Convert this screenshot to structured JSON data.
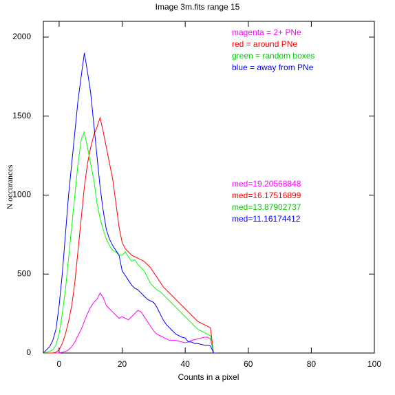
{
  "chart_data": {
    "type": "line",
    "title": "Image 3m.fits   range 15",
    "x_label": "Counts in a pixel",
    "y_label": "N occurances",
    "x": [
      -5,
      -4,
      -3,
      -2,
      -1,
      0,
      1,
      2,
      3,
      4,
      5,
      6,
      7,
      8,
      9,
      10,
      11,
      12,
      13,
      14,
      15,
      16,
      17,
      18,
      19,
      20,
      21,
      22,
      23,
      24,
      25,
      26,
      27,
      28,
      29,
      30,
      31,
      32,
      33,
      34,
      35,
      36,
      37,
      38,
      39,
      40,
      41,
      42,
      43,
      44,
      45,
      46,
      47,
      48,
      49,
      50
    ],
    "series": [
      {
        "color": "#ff00ff",
        "values": [
          0,
          0,
          0,
          0,
          0,
          0,
          5,
          10,
          20,
          40,
          70,
          110,
          150,
          200,
          250,
          290,
          320,
          340,
          380,
          350,
          300,
          280,
          260,
          240,
          220,
          230,
          220,
          210,
          230,
          250,
          270,
          260,
          230,
          200,
          170,
          140,
          120,
          110,
          100,
          90,
          80,
          80,
          80,
          75,
          70,
          65,
          70,
          80,
          85,
          90,
          95,
          100,
          100,
          90,
          0,
          0
        ]
      },
      {
        "color": "#ff0000",
        "values": [
          0,
          0,
          0,
          0,
          5,
          20,
          60,
          120,
          200,
          300,
          450,
          650,
          850,
          1050,
          1200,
          1300,
          1380,
          1430,
          1490,
          1400,
          1300,
          1200,
          1100,
          950,
          800,
          700,
          660,
          640,
          620,
          610,
          600,
          590,
          580,
          560,
          540,
          510,
          480,
          450,
          420,
          400,
          380,
          360,
          340,
          320,
          300,
          280,
          260,
          240,
          220,
          200,
          190,
          180,
          170,
          160,
          0,
          0
        ]
      },
      {
        "color": "#00ff00",
        "values": [
          0,
          5,
          10,
          20,
          50,
          120,
          250,
          400,
          600,
          800,
          1000,
          1200,
          1350,
          1400,
          1300,
          1200,
          1100,
          950,
          850,
          780,
          720,
          680,
          650,
          640,
          620,
          620,
          640,
          610,
          580,
          590,
          560,
          540,
          520,
          480,
          440,
          420,
          400,
          390,
          370,
          350,
          330,
          310,
          290,
          270,
          250,
          230,
          210,
          190,
          170,
          150,
          140,
          130,
          120,
          110,
          0,
          0
        ]
      },
      {
        "color": "#0000ff",
        "values": [
          0,
          20,
          40,
          80,
          150,
          300,
          500,
          750,
          1000,
          1200,
          1400,
          1600,
          1750,
          1900,
          1780,
          1650,
          1450,
          1250,
          1050,
          900,
          780,
          720,
          680,
          650,
          620,
          520,
          490,
          460,
          430,
          410,
          400,
          380,
          360,
          340,
          330,
          320,
          290,
          250,
          210,
          180,
          160,
          140,
          120,
          110,
          100,
          95,
          70,
          70,
          60,
          60,
          55,
          50,
          50,
          45,
          0,
          0
        ]
      }
    ],
    "annotations": [
      {
        "text": "magenta = 2+ PNe",
        "color": "#ff00ff"
      },
      {
        "text": "red = around PNe",
        "color": "#ff0000"
      },
      {
        "text": "green = random boxes",
        "color": "#00cc00"
      },
      {
        "text": "blue = away from PNe",
        "color": "#0000ff"
      },
      {
        "text": "med=19.20568848",
        "color": "#ff00ff"
      },
      {
        "text": "med=16.17516899",
        "color": "#ff0000"
      },
      {
        "text": "med=13.87902737",
        "color": "#00cc00"
      },
      {
        "text": "med=11.16174412",
        "color": "#0000ff"
      }
    ],
    "xlim": [
      -5,
      100
    ],
    "ylim": [
      0,
      2100
    ],
    "xticks": [
      0,
      20,
      40,
      60,
      80,
      100
    ],
    "yticks": [
      0,
      500,
      1000,
      1500,
      2000
    ]
  }
}
